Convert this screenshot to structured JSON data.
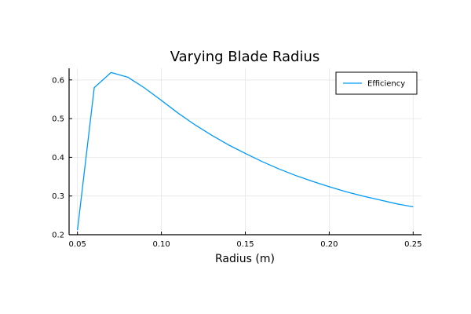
{
  "chart_data": {
    "type": "line",
    "title": "Varying Blade Radius",
    "xlabel": "Radius (m)",
    "ylabel": "",
    "xlim": [
      0.045,
      0.255
    ],
    "ylim": [
      0.2,
      0.63
    ],
    "xticks": [
      0.05,
      0.1,
      0.15,
      0.2,
      0.25
    ],
    "xtick_labels": [
      "0.05",
      "0.10",
      "0.15",
      "0.20",
      "0.25"
    ],
    "yticks": [
      0.2,
      0.3,
      0.4,
      0.5,
      0.6
    ],
    "ytick_labels": [
      "0.2",
      "0.3",
      "0.4",
      "0.5",
      "0.6"
    ],
    "grid": true,
    "legend_position": "top-right",
    "series": [
      {
        "name": "Efficiency",
        "color": "#009af9",
        "x": [
          0.05,
          0.06,
          0.07,
          0.08,
          0.09,
          0.1,
          0.11,
          0.12,
          0.13,
          0.14,
          0.15,
          0.16,
          0.17,
          0.18,
          0.19,
          0.2,
          0.21,
          0.22,
          0.23,
          0.24,
          0.25
        ],
        "y": [
          0.212,
          0.58,
          0.619,
          0.607,
          0.579,
          0.547,
          0.514,
          0.484,
          0.457,
          0.432,
          0.41,
          0.389,
          0.37,
          0.353,
          0.338,
          0.324,
          0.311,
          0.3,
          0.29,
          0.28,
          0.272
        ]
      }
    ]
  }
}
